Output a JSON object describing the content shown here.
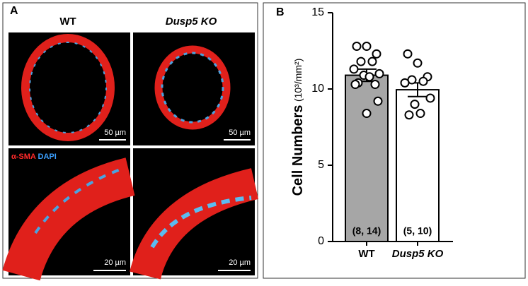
{
  "panel_a": {
    "label": "A",
    "columns": [
      "WT",
      "Dusp5 KO"
    ],
    "scale_bars": [
      "50 µm",
      "50 µm",
      "20 µm",
      "20 µm"
    ],
    "stain": [
      "α-SMA",
      "DAPI"
    ]
  },
  "panel_b": {
    "label": "B"
  },
  "chart_data": {
    "type": "bar",
    "y_label": "Cell Numbers",
    "y_unit": "(10³/mm²)",
    "categories": [
      "WT",
      "Dusp5 KO"
    ],
    "values": [
      10.9,
      9.95
    ],
    "errors": [
      0.4,
      0.45
    ],
    "n_labels": [
      "(8, 14)",
      "(5, 10)"
    ],
    "colors": [
      "#a6a6a6",
      "#ffffff"
    ],
    "points": [
      [
        12.8,
        12.8,
        12.3,
        11.8,
        11.8,
        11.3,
        11.0,
        10.9,
        10.8,
        10.4,
        10.3,
        10.3,
        9.2,
        8.4
      ],
      [
        12.3,
        11.7,
        10.8,
        10.6,
        10.5,
        10.4,
        9.4,
        9.0,
        8.4,
        8.3
      ]
    ],
    "ylim": [
      0,
      15
    ],
    "yticks": [
      0,
      5,
      10,
      15
    ]
  }
}
